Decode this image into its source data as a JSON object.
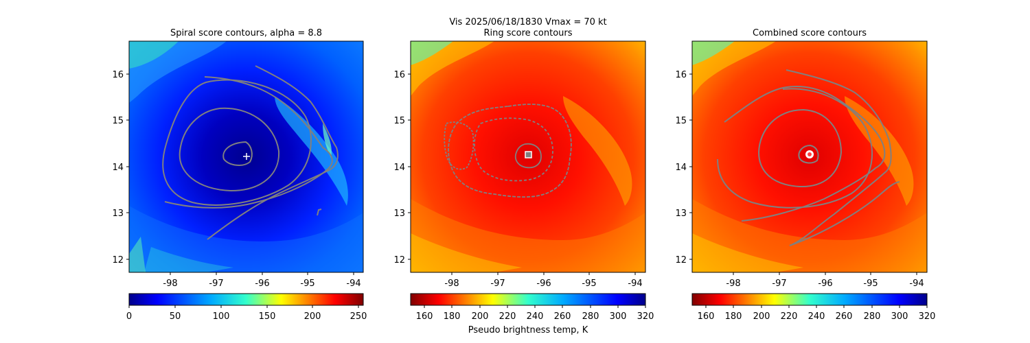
{
  "figure": {
    "suptitle_line1": "Vis  2025/06/18/1830    Vmax = 70 kt",
    "colorbar_label": "Pseudo brightness temp, K"
  },
  "chart_data": [
    {
      "type": "heatmap",
      "title": "Spiral score contours, alpha =  8.8",
      "xlabel": "",
      "ylabel": "",
      "xlim": [
        -98.9,
        -93.8
      ],
      "ylim": [
        11.7,
        16.7
      ],
      "xticks": [
        -98,
        -97,
        -96,
        -95,
        -94
      ],
      "yticks": [
        12,
        13,
        14,
        15,
        16
      ],
      "colormap": "jet_r",
      "colorbar": {
        "range": [
          0,
          255
        ],
        "ticks": [
          0,
          50,
          100,
          150,
          200,
          250
        ]
      },
      "field": {
        "cold_center": [
          -96.3,
          14.2
        ],
        "base": "blue"
      },
      "center_marker": {
        "symbol": "plus",
        "color": "#ffffff",
        "x": -96.3,
        "y": 14.2
      },
      "contour_color": "#808080",
      "grid": false
    },
    {
      "type": "heatmap",
      "title": "Ring score contours",
      "xlabel": "",
      "ylabel": "",
      "xlim": [
        -98.9,
        -93.8
      ],
      "ylim": [
        11.7,
        16.7
      ],
      "xticks": [
        -98,
        -97,
        -96,
        -95,
        -94
      ],
      "yticks": [
        12,
        13,
        14,
        15,
        16
      ],
      "colormap": "jet",
      "colorbar": {
        "range": [
          150,
          320
        ],
        "ticks": [
          160,
          180,
          200,
          220,
          240,
          260,
          280,
          300,
          320
        ]
      },
      "field": {
        "cold_center": [
          -96.3,
          14.2
        ],
        "base": "red"
      },
      "center_marker": {
        "symbol": "square",
        "color": "#ffffff",
        "x": -96.3,
        "y": 14.25
      },
      "contour_color": "#808080",
      "grid": false
    },
    {
      "type": "heatmap",
      "title": "Combined score contours",
      "xlabel": "",
      "ylabel": "",
      "xlim": [
        -98.9,
        -93.8
      ],
      "ylim": [
        11.7,
        16.7
      ],
      "xticks": [
        -98,
        -97,
        -96,
        -95,
        -94
      ],
      "yticks": [
        12,
        13,
        14,
        15,
        16
      ],
      "colormap": "jet",
      "colorbar": {
        "range": [
          150,
          320
        ],
        "ticks": [
          160,
          180,
          200,
          220,
          240,
          260,
          280,
          300,
          320
        ]
      },
      "field": {
        "cold_center": [
          -96.3,
          14.2
        ],
        "base": "red"
      },
      "center_marker": {
        "symbol": "circle",
        "color": "#ffffff",
        "x": -96.3,
        "y": 14.27
      },
      "contour_color": "#808080",
      "grid": false
    }
  ]
}
